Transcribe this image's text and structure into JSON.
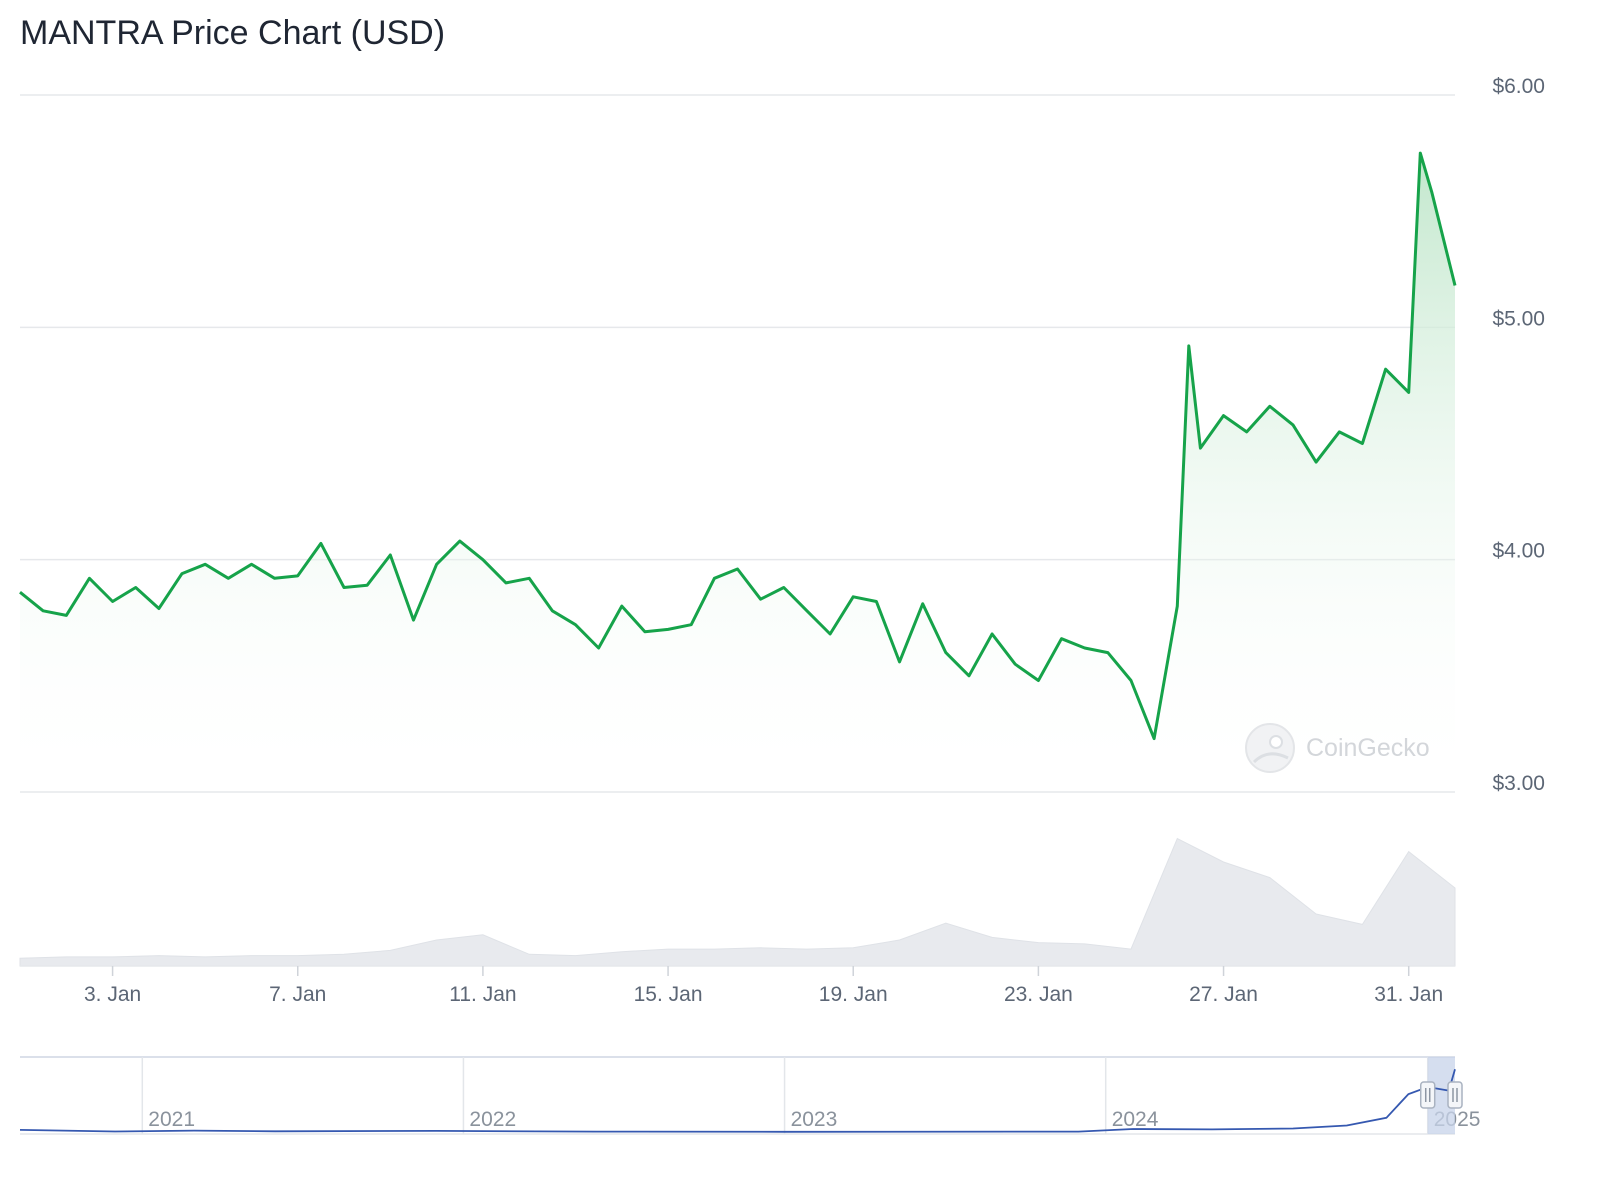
{
  "page": {
    "title": "MANTRA Price Chart (USD)"
  },
  "colors": {
    "price_line": "#16a34a",
    "area_top": "#bfe6ca",
    "volume": "#e8eaee",
    "grid": "#e6e8eb",
    "navigator_line": "#3558b0",
    "navigator_handle": "#c7d3ea"
  },
  "watermark": {
    "text": "CoinGecko",
    "icon": "gecko-logo-icon"
  },
  "chart_data": {
    "type": "line",
    "title": "MANTRA Price Chart (USD)",
    "currency": "USD",
    "x_range": [
      "2025-01-01",
      "2025-02-01"
    ],
    "ylim": [
      3.0,
      6.0
    ],
    "y_ticks": [
      3.0,
      4.0,
      5.0,
      6.0
    ],
    "y_tick_labels": [
      "$3.00",
      "$4.00",
      "$5.00",
      "$6.00"
    ],
    "x_tick_labels": [
      "3. Jan",
      "7. Jan",
      "11. Jan",
      "15. Jan",
      "19. Jan",
      "23. Jan",
      "27. Jan",
      "31. Jan"
    ],
    "x_tick_dates": [
      "2025-01-03",
      "2025-01-07",
      "2025-01-11",
      "2025-01-15",
      "2025-01-19",
      "2025-01-23",
      "2025-01-27",
      "2025-01-31"
    ],
    "grid": true,
    "series": [
      {
        "role": "price",
        "points": [
          [
            "2025-01-01",
            3.86
          ],
          [
            "2025-01-01 12:00",
            3.78
          ],
          [
            "2025-01-02",
            3.76
          ],
          [
            "2025-01-02 12:00",
            3.92
          ],
          [
            "2025-01-03",
            3.82
          ],
          [
            "2025-01-03 12:00",
            3.88
          ],
          [
            "2025-01-04",
            3.79
          ],
          [
            "2025-01-04 12:00",
            3.94
          ],
          [
            "2025-01-05",
            3.98
          ],
          [
            "2025-01-05 12:00",
            3.92
          ],
          [
            "2025-01-06",
            3.98
          ],
          [
            "2025-01-06 12:00",
            3.92
          ],
          [
            "2025-01-07",
            3.93
          ],
          [
            "2025-01-07 12:00",
            4.07
          ],
          [
            "2025-01-08",
            3.88
          ],
          [
            "2025-01-08 12:00",
            3.89
          ],
          [
            "2025-01-09",
            4.02
          ],
          [
            "2025-01-09 12:00",
            3.74
          ],
          [
            "2025-01-10",
            3.98
          ],
          [
            "2025-01-10 12:00",
            4.08
          ],
          [
            "2025-01-11",
            4.0
          ],
          [
            "2025-01-11 12:00",
            3.9
          ],
          [
            "2025-01-12",
            3.92
          ],
          [
            "2025-01-12 12:00",
            3.78
          ],
          [
            "2025-01-13",
            3.72
          ],
          [
            "2025-01-13 12:00",
            3.62
          ],
          [
            "2025-01-14",
            3.8
          ],
          [
            "2025-01-14 12:00",
            3.69
          ],
          [
            "2025-01-15",
            3.7
          ],
          [
            "2025-01-15 12:00",
            3.72
          ],
          [
            "2025-01-16",
            3.92
          ],
          [
            "2025-01-16 12:00",
            3.96
          ],
          [
            "2025-01-17",
            3.83
          ],
          [
            "2025-01-17 12:00",
            3.88
          ],
          [
            "2025-01-18",
            3.78
          ],
          [
            "2025-01-18 12:00",
            3.68
          ],
          [
            "2025-01-19",
            3.84
          ],
          [
            "2025-01-19 12:00",
            3.82
          ],
          [
            "2025-01-20",
            3.56
          ],
          [
            "2025-01-20 12:00",
            3.81
          ],
          [
            "2025-01-21",
            3.6
          ],
          [
            "2025-01-21 12:00",
            3.5
          ],
          [
            "2025-01-22",
            3.68
          ],
          [
            "2025-01-22 12:00",
            3.55
          ],
          [
            "2025-01-23",
            3.48
          ],
          [
            "2025-01-23 12:00",
            3.66
          ],
          [
            "2025-01-24",
            3.62
          ],
          [
            "2025-01-24 12:00",
            3.6
          ],
          [
            "2025-01-25",
            3.48
          ],
          [
            "2025-01-25 12:00",
            3.23
          ],
          [
            "2025-01-26",
            3.8
          ],
          [
            "2025-01-26 06:00",
            4.92
          ],
          [
            "2025-01-26 12:00",
            4.48
          ],
          [
            "2025-01-27",
            4.62
          ],
          [
            "2025-01-27 12:00",
            4.55
          ],
          [
            "2025-01-28",
            4.66
          ],
          [
            "2025-01-28 12:00",
            4.58
          ],
          [
            "2025-01-29",
            4.42
          ],
          [
            "2025-01-29 12:00",
            4.55
          ],
          [
            "2025-01-30",
            4.5
          ],
          [
            "2025-01-30 12:00",
            4.82
          ],
          [
            "2025-01-31",
            4.72
          ],
          [
            "2025-01-31 06:00",
            5.75
          ],
          [
            "2025-01-31 12:00",
            5.58
          ],
          [
            "2025-02-01",
            5.18
          ]
        ]
      },
      {
        "role": "volume",
        "points": [
          [
            "2025-01-01",
            0.06
          ],
          [
            "2025-01-02",
            0.07
          ],
          [
            "2025-01-03",
            0.07
          ],
          [
            "2025-01-04",
            0.08
          ],
          [
            "2025-01-05",
            0.07
          ],
          [
            "2025-01-06",
            0.08
          ],
          [
            "2025-01-07",
            0.08
          ],
          [
            "2025-01-08",
            0.09
          ],
          [
            "2025-01-09",
            0.12
          ],
          [
            "2025-01-10",
            0.2
          ],
          [
            "2025-01-11",
            0.24
          ],
          [
            "2025-01-12",
            0.09
          ],
          [
            "2025-01-13",
            0.08
          ],
          [
            "2025-01-14",
            0.11
          ],
          [
            "2025-01-15",
            0.13
          ],
          [
            "2025-01-16",
            0.13
          ],
          [
            "2025-01-17",
            0.14
          ],
          [
            "2025-01-18",
            0.13
          ],
          [
            "2025-01-19",
            0.14
          ],
          [
            "2025-01-20",
            0.2
          ],
          [
            "2025-01-21",
            0.33
          ],
          [
            "2025-01-22",
            0.22
          ],
          [
            "2025-01-23",
            0.18
          ],
          [
            "2025-01-24",
            0.17
          ],
          [
            "2025-01-25",
            0.13
          ],
          [
            "2025-01-26",
            0.98
          ],
          [
            "2025-01-27",
            0.8
          ],
          [
            "2025-01-28",
            0.68
          ],
          [
            "2025-01-29",
            0.4
          ],
          [
            "2025-01-30",
            0.32
          ],
          [
            "2025-01-31",
            0.88
          ],
          [
            "2025-02-01",
            0.6
          ]
        ]
      }
    ],
    "navigator": {
      "tick_labels": [
        "2021",
        "2022",
        "2023",
        "2024",
        "2025"
      ],
      "x_range": [
        "2020-08-15",
        "2025-02-01"
      ],
      "points": [
        [
          "2020-08-15",
          0.18
        ],
        [
          "2020-12-01",
          0.04
        ],
        [
          "2021-03-01",
          0.12
        ],
        [
          "2021-06-01",
          0.06
        ],
        [
          "2021-12-01",
          0.09
        ],
        [
          "2022-06-01",
          0.03
        ],
        [
          "2023-01-01",
          0.02
        ],
        [
          "2023-12-01",
          0.03
        ],
        [
          "2024-02-01",
          0.25
        ],
        [
          "2024-05-01",
          0.22
        ],
        [
          "2024-08-01",
          0.3
        ],
        [
          "2024-10-01",
          0.55
        ],
        [
          "2024-11-15",
          1.2
        ],
        [
          "2024-12-10",
          3.2
        ],
        [
          "2025-01-01",
          3.8
        ],
        [
          "2025-01-25",
          3.5
        ],
        [
          "2025-02-01",
          5.3
        ]
      ],
      "selected_range": [
        "2025-01-01",
        "2025-02-01"
      ]
    }
  }
}
